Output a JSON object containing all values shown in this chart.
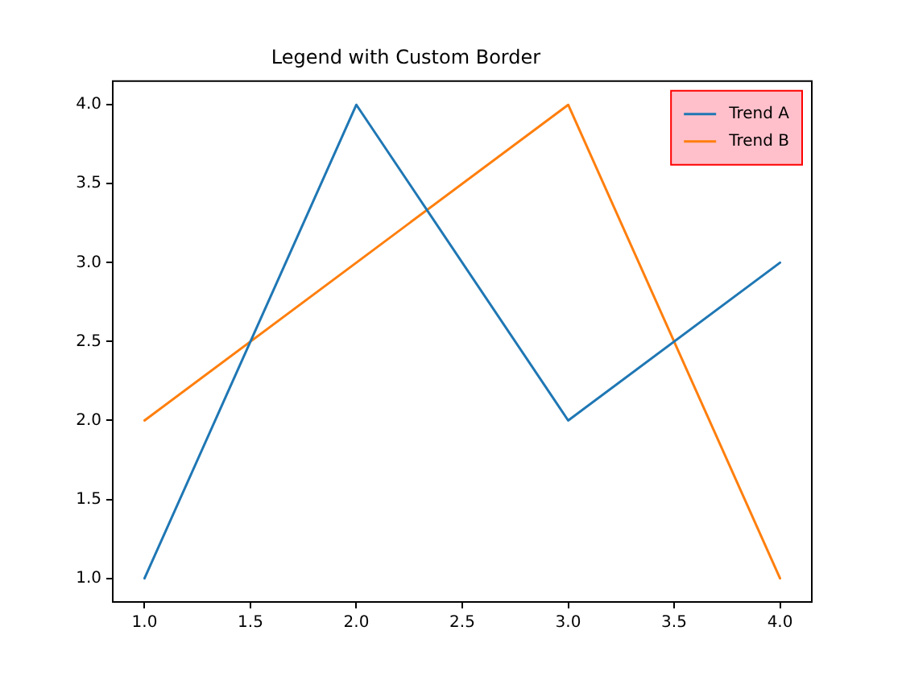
{
  "chart_data": {
    "type": "line",
    "title": "Legend with Custom Border",
    "x": [
      1,
      2,
      3,
      4
    ],
    "series": [
      {
        "name": "Trend A",
        "color": "#1f77b4",
        "values": [
          1,
          4,
          2,
          3
        ]
      },
      {
        "name": "Trend B",
        "color": "#ff7f0e",
        "values": [
          2,
          3,
          4,
          1
        ]
      }
    ],
    "xlim": [
      0.85,
      4.15
    ],
    "xticks": [
      {
        "value": 1,
        "label": "1.0"
      },
      {
        "value": 1.5,
        "label": "1.5"
      },
      {
        "value": 2,
        "label": "2.0"
      },
      {
        "value": 2.5,
        "label": "2.5"
      },
      {
        "value": 3,
        "label": "3.0"
      },
      {
        "value": 3.5,
        "label": "3.5"
      },
      {
        "value": 4,
        "label": "4.0"
      }
    ],
    "ylim": [
      0.85,
      4.15
    ],
    "yticks": [
      {
        "value": 1,
        "label": "1.0"
      },
      {
        "value": 1.5,
        "label": "1.5"
      },
      {
        "value": 2,
        "label": "2.0"
      },
      {
        "value": 2.5,
        "label": "2.5"
      },
      {
        "value": 3,
        "label": "3.0"
      },
      {
        "value": 3.5,
        "label": "3.5"
      },
      {
        "value": 4,
        "label": "4.0"
      }
    ],
    "legend": "top right",
    "marker": "none",
    "line_style": "solid"
  }
}
